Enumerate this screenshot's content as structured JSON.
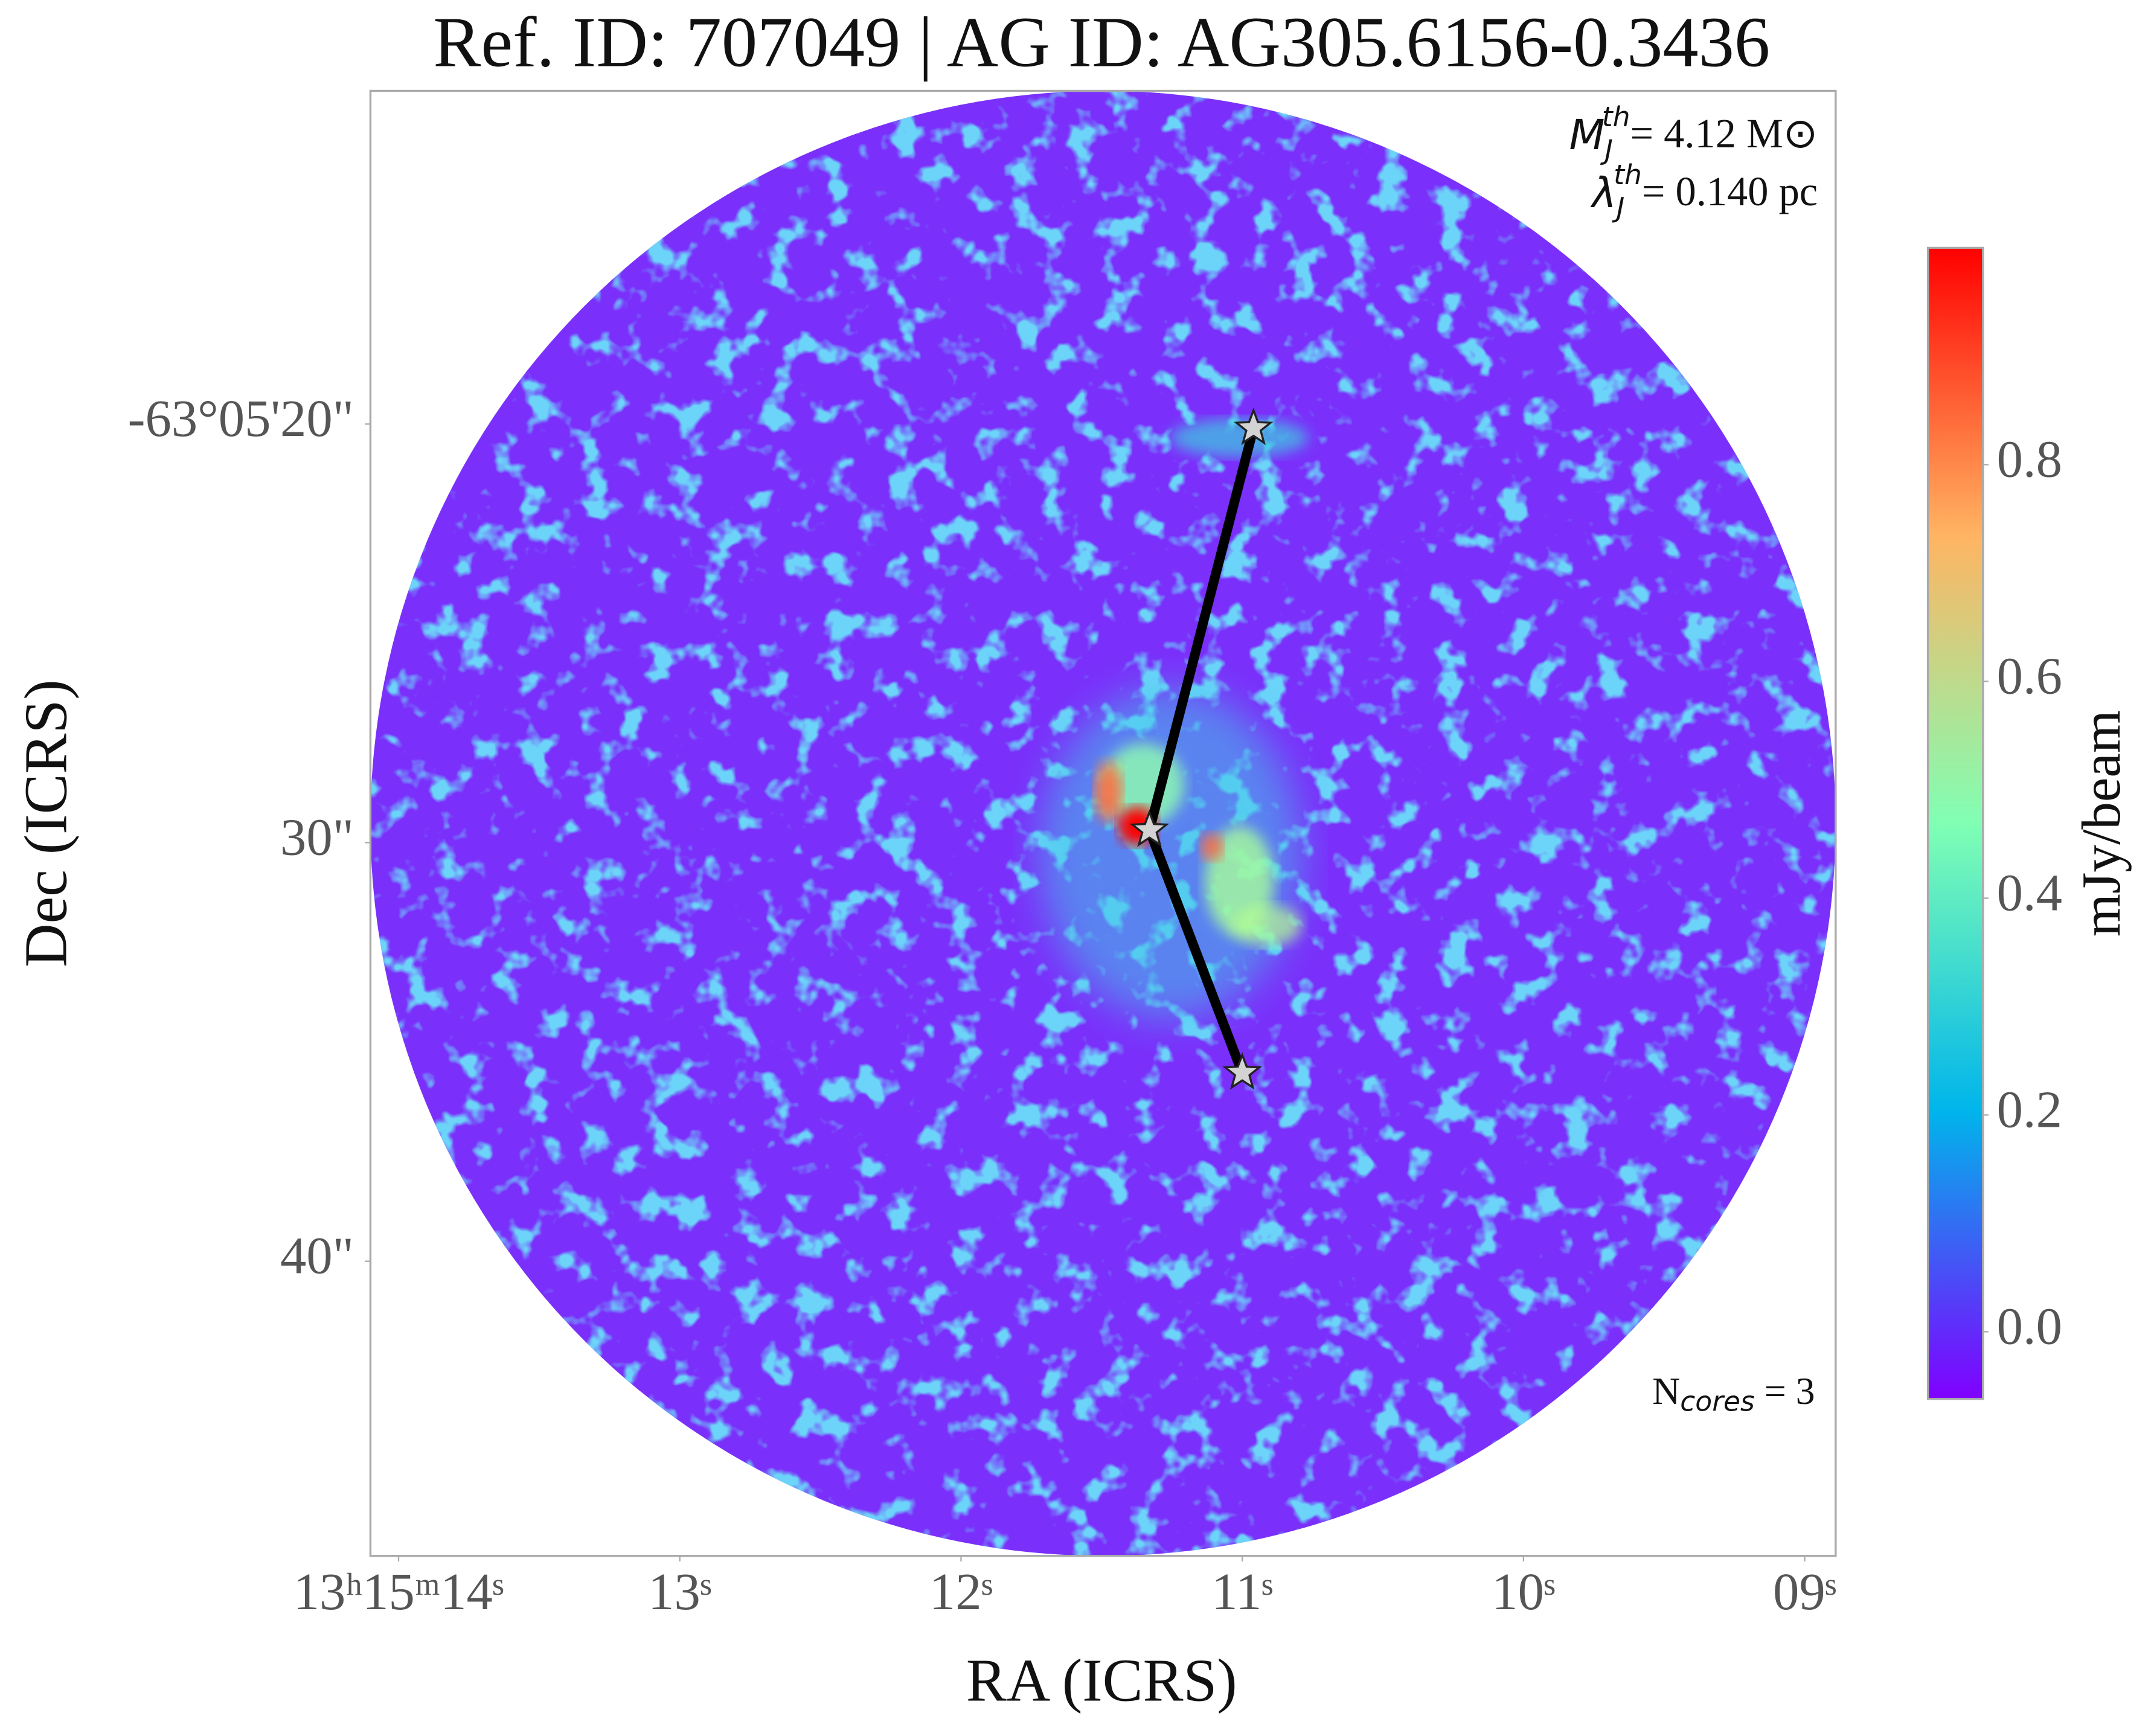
{
  "chart_data": {
    "type": "image",
    "title": "Ref. ID: 707049 | AG ID: AG305.6156-0.3436",
    "x_label": "RA (ICRS)",
    "y_label": "Dec (ICRS)",
    "colorbar_label": "mJy/beam",
    "annotations": [
      {
        "symbol": "M",
        "sub": "J",
        "sup": "th",
        "text": "= 4.12 M⊙"
      },
      {
        "symbol": "λ",
        "sub": "J",
        "sup": "th",
        "text": "= 0.140 pc"
      },
      {
        "symbol": "N",
        "sub": "cores",
        "text": " = 3"
      }
    ],
    "xlim": [
      14.1,
      8.89
    ],
    "xticks": [
      {
        "value": 14,
        "label": "13ʰ15ᵐ14ˢ"
      },
      {
        "value": 13,
        "label": "13ˢ"
      },
      {
        "value": 12,
        "label": "12ˢ"
      },
      {
        "value": 11,
        "label": "11ˢ"
      },
      {
        "value": 10,
        "label": "10ˢ"
      },
      {
        "value": 9,
        "label": "09ˢ"
      }
    ],
    "ylim": [
      47.04,
      12.04
    ],
    "yticks": [
      {
        "value": 20,
        "label": "-63°05'20\""
      },
      {
        "value": 30,
        "label": "30\""
      },
      {
        "value": 40,
        "label": "40\""
      }
    ],
    "clim": [
      -0.062,
      1.0
    ],
    "cticks": [
      {
        "value": 0,
        "label": "0.0"
      },
      0.2,
      0.4,
      0.6,
      0.8
    ],
    "colormap": [
      "#8000ff",
      "#00b5eb",
      "#80ffb4",
      "#ffb462",
      "#ff0000"
    ],
    "x": [
      10.96,
      11.33,
      11.0
    ],
    "values": [
      20.1,
      29.7,
      35.5
    ],
    "marker_color": "#d3d3d3",
    "line_color": "#000000"
  }
}
